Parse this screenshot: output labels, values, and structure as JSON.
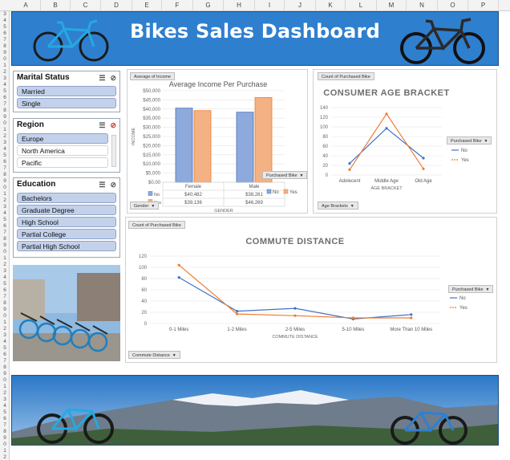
{
  "columns": [
    "A",
    "B",
    "C",
    "D",
    "E",
    "F",
    "G",
    "H",
    "I",
    "J",
    "K",
    "L",
    "M",
    "N",
    "O",
    "P"
  ],
  "rows": [
    "3",
    "4",
    "5",
    "6",
    "7",
    "8",
    "9",
    "0",
    "1",
    "2",
    "3",
    "4",
    "5",
    "6",
    "7",
    "8",
    "9",
    "0",
    "1",
    "2",
    "3",
    "4",
    "5",
    "6",
    "7",
    "8",
    "9",
    "0",
    "1",
    "2",
    "3",
    "4",
    "5",
    "6",
    "7",
    "8",
    "9",
    "0",
    "1",
    "2",
    "3",
    "4",
    "5",
    "6",
    "7",
    "8",
    "9",
    "0",
    "1",
    "2",
    "3",
    "4",
    "5",
    "6",
    "7",
    "8",
    "9",
    "0",
    "1",
    "2",
    "3",
    "4",
    "5",
    "6",
    "7",
    "8",
    "9",
    "0",
    "1",
    "2"
  ],
  "dashboard": {
    "title": "Bikes Sales Dashboard"
  },
  "slicers": {
    "marital": {
      "title": "Marital Status",
      "items": [
        "Married",
        "Single"
      ]
    },
    "region": {
      "title": "Region",
      "items": [
        "Europe",
        "North America",
        "Pacific"
      ]
    },
    "education": {
      "title": "Education",
      "items": [
        "Bachelors",
        "Graduate Degree",
        "High School",
        "Partial College",
        "Partial High School"
      ]
    }
  },
  "income_panel": {
    "field_top": "Average of Income",
    "field_bottom": "Gender",
    "field_legend": "Purchased Bike",
    "legend": [
      "No",
      "Yes"
    ],
    "table": {
      "headers": [
        "Female",
        "Male"
      ],
      "rows": [
        [
          "No",
          "$40,482",
          "$38,261"
        ],
        [
          "Yes",
          "$39,136",
          "$46,269"
        ]
      ]
    }
  },
  "age_panel": {
    "field_top": "Count of Purchased Bike",
    "field_bottom": "Age Brackets",
    "field_legend": "Purchased Bike",
    "legend": [
      "No",
      "Yes"
    ]
  },
  "commute_panel": {
    "field_top": "Count of Purchased Bike",
    "field_bottom": "Commute Distance",
    "field_legend": "Purchased Bike",
    "legend": [
      "No",
      "Yes"
    ]
  },
  "colors": {
    "no": "#4472c4",
    "yes": "#ed7d31",
    "bar_no": "#8ea9db",
    "bar_yes": "#f4b183",
    "banner": "#2f7fcf"
  },
  "chart_data": [
    {
      "type": "bar",
      "title": "Average Income Per Purchase",
      "xlabel": "GENDER",
      "ylabel": "INCOME",
      "categories": [
        "Female",
        "Male"
      ],
      "series": [
        {
          "name": "No",
          "values": [
            40482,
            38261
          ]
        },
        {
          "name": "Yes",
          "values": [
            39136,
            46269
          ]
        }
      ],
      "ylim": [
        0,
        50000
      ],
      "yticks": [
        "$0.00",
        "$5,000",
        "$10,000",
        "$15,000",
        "$20,000",
        "$25,000",
        "$30,000",
        "$35,000",
        "$40,000",
        "$45,000",
        "$50,000"
      ],
      "grid": true
    },
    {
      "type": "line",
      "title": "CONSUMER AGE BRACKET",
      "xlabel": "AGE BRACKET",
      "ylabel": "",
      "categories": [
        "Adolecent",
        "Middle Age",
        "Old Age"
      ],
      "series": [
        {
          "name": "No",
          "values": [
            24,
            97,
            35
          ]
        },
        {
          "name": "Yes",
          "values": [
            11,
            127,
            13
          ]
        }
      ],
      "ylim": [
        0,
        140
      ],
      "yticks": [
        "0",
        "20",
        "40",
        "60",
        "80",
        "100",
        "120",
        "140"
      ],
      "grid": true
    },
    {
      "type": "line",
      "title": "COMMUTE DISTANCE",
      "xlabel": "COMMUTE DISTANCE",
      "ylabel": "",
      "categories": [
        "0-1 Miles",
        "1-2 Miles",
        "2-5 Miles",
        "5-10 Miles",
        "More Than 10 Miles"
      ],
      "series": [
        {
          "name": "No",
          "values": [
            82,
            22,
            27,
            8,
            16
          ]
        },
        {
          "name": "Yes",
          "values": [
            104,
            17,
            14,
            10,
            10
          ]
        }
      ],
      "ylim": [
        0,
        120
      ],
      "yticks": [
        "0",
        "20",
        "40",
        "60",
        "80",
        "100",
        "120"
      ],
      "grid": true
    }
  ]
}
